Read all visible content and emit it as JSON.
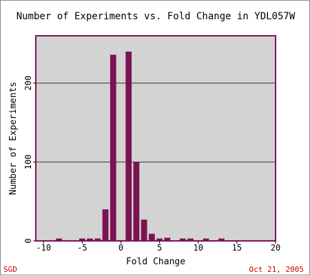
{
  "chart_data": {
    "type": "bar",
    "title": "Number of Experiments vs. Fold Change in YDL057W",
    "xlabel": "Fold Change",
    "ylabel": "Number of Experiments",
    "xlim": [
      -11,
      20
    ],
    "ylim": [
      0,
      260
    ],
    "xticks": [
      -10,
      -5,
      0,
      5,
      10,
      15,
      20
    ],
    "yticks": [
      0,
      100,
      200
    ],
    "grid": true,
    "colors": {
      "bar": "#7b1353",
      "plot_bg": "#d3d3d3",
      "plot_border": "#7b1353",
      "gridline": "#333333"
    },
    "x": [
      -8,
      -5,
      -4,
      -3,
      -2,
      -1,
      1,
      2,
      3,
      4,
      5,
      6,
      8,
      9,
      11,
      13
    ],
    "values": [
      3,
      3,
      3,
      3,
      40,
      236,
      240,
      100,
      27,
      9,
      3,
      4,
      3,
      3,
      3,
      3
    ]
  },
  "footer": {
    "source": "SGD",
    "date": "Oct 21, 2005"
  }
}
